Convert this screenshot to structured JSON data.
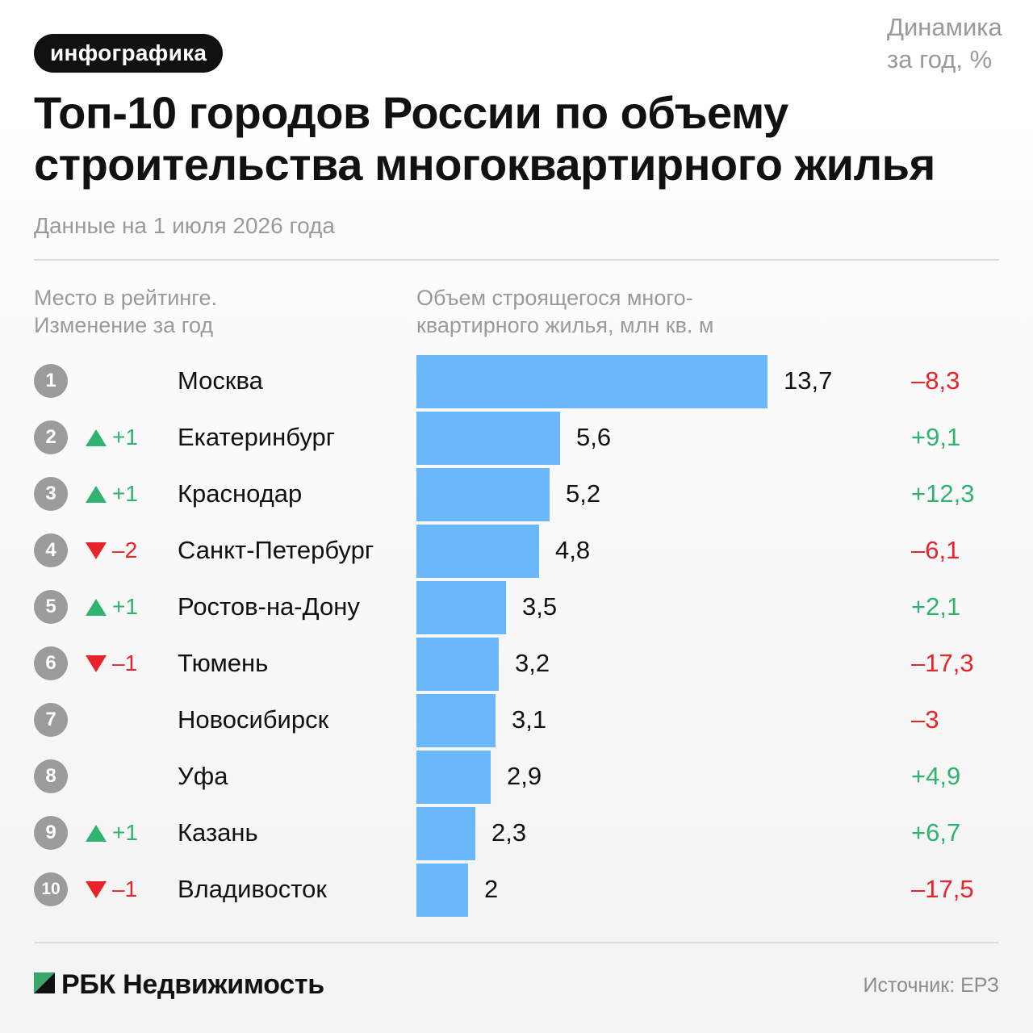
{
  "tag": "инфографика",
  "title": "Топ-10 городов России по объему строительства многоквартирного жилья",
  "subtitle": "Данные на 1 июля 2026 года",
  "headers": {
    "rank_line1": "Место в рейтинге.",
    "rank_line2": "Изменение за год",
    "volume_line1": "Объем строящегося много-",
    "volume_line2": "квартирного жилья, млн кв. м",
    "dynamics_line1": "Динамика",
    "dynamics_line2": "за год, %"
  },
  "colors": {
    "bar": "#6ab8fb",
    "up": "#2fb36e",
    "down": "#e8232a",
    "badge": "#9b9b9b",
    "logo_green": "#3aa56a"
  },
  "chart_data": {
    "type": "bar",
    "orientation": "horizontal",
    "title": "Топ-10 городов России по объему строительства многоквартирного жилья",
    "subtitle": "Данные на 1 июля 2026 года",
    "value_label": "Объем строящегося многоквартирного жилья, млн кв. м",
    "xlim": [
      0,
      13.7
    ],
    "rows": [
      {
        "rank": "1",
        "change": "",
        "direction": "none",
        "city": "Москва",
        "value": 13.7,
        "value_label": "13,7",
        "dynamics": "–8,3",
        "dyn_sign": "neg"
      },
      {
        "rank": "2",
        "change": "+1",
        "direction": "up",
        "city": "Екатеринбург",
        "value": 5.6,
        "value_label": "5,6",
        "dynamics": "+9,1",
        "dyn_sign": "pos"
      },
      {
        "rank": "3",
        "change": "+1",
        "direction": "up",
        "city": "Краснодар",
        "value": 5.2,
        "value_label": "5,2",
        "dynamics": "+12,3",
        "dyn_sign": "pos"
      },
      {
        "rank": "4",
        "change": "–2",
        "direction": "down",
        "city": "Санкт-Петербург",
        "value": 4.8,
        "value_label": "4,8",
        "dynamics": "–6,1",
        "dyn_sign": "neg"
      },
      {
        "rank": "5",
        "change": "+1",
        "direction": "up",
        "city": "Ростов-на-Дону",
        "value": 3.5,
        "value_label": "3,5",
        "dynamics": "+2,1",
        "dyn_sign": "pos"
      },
      {
        "rank": "6",
        "change": "–1",
        "direction": "down",
        "city": "Тюмень",
        "value": 3.2,
        "value_label": "3,2",
        "dynamics": "–17,3",
        "dyn_sign": "neg"
      },
      {
        "rank": "7",
        "change": "",
        "direction": "none",
        "city": "Новосибирск",
        "value": 3.1,
        "value_label": "3,1",
        "dynamics": "–3",
        "dyn_sign": "neg"
      },
      {
        "rank": "8",
        "change": "",
        "direction": "none",
        "city": "Уфа",
        "value": 2.9,
        "value_label": "2,9",
        "dynamics": "+4,9",
        "dyn_sign": "pos"
      },
      {
        "rank": "9",
        "change": "+1",
        "direction": "up",
        "city": "Казань",
        "value": 2.3,
        "value_label": "2,3",
        "dynamics": "+6,7",
        "dyn_sign": "pos"
      },
      {
        "rank": "10",
        "change": "–1",
        "direction": "down",
        "city": "Владивосток",
        "value": 2.0,
        "value_label": "2",
        "dynamics": "–17,5",
        "dyn_sign": "neg"
      }
    ]
  },
  "footer": {
    "brand": "РБК Недвижимость",
    "logo_icon": "rbc-logo-icon",
    "source": "Источник: ЕРЗ"
  }
}
